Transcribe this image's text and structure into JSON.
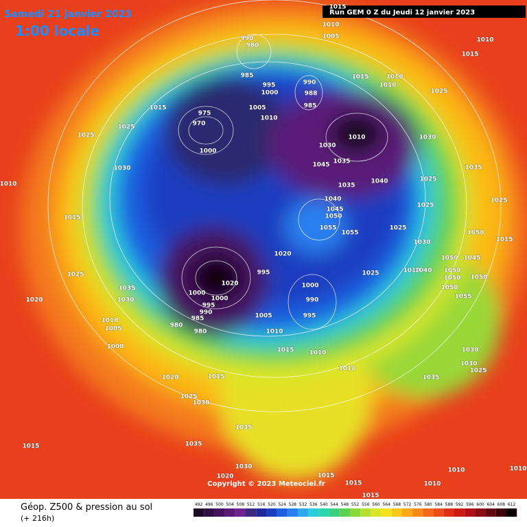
{
  "header": {
    "date": "Samedi 21 janvier 2023",
    "time": "1:00 locale",
    "run": "Run GEM 0 Z du Jeudi 12 janvier 2023"
  },
  "footer": {
    "title": "Géop. Z500 & pression au sol",
    "lead": "(+ 216h)",
    "copyright": "Copyright © 2023 Meteociel.fr"
  },
  "colorbar": {
    "levels": [
      492,
      496,
      500,
      504,
      508,
      512,
      516,
      520,
      524,
      528,
      532,
      536,
      540,
      544,
      548,
      552,
      556,
      560,
      564,
      568,
      572,
      576,
      580,
      584,
      588,
      592,
      596,
      600,
      604,
      608,
      612
    ],
    "colors": [
      "#1a0a24",
      "#2e0e45",
      "#44125e",
      "#5a1a78",
      "#6e2490",
      "#3a2a80",
      "#1e2a9a",
      "#1a3ec0",
      "#1e5ee0",
      "#2a80f0",
      "#30a8f0",
      "#2ccce0",
      "#2ad6b0",
      "#3ad080",
      "#5cd050",
      "#8ad83a",
      "#b6e030",
      "#dce628",
      "#f6e020",
      "#fcc818",
      "#fca818",
      "#f88818",
      "#f46818",
      "#ec4c18",
      "#e03018",
      "#cc1c18",
      "#b01018",
      "#8a0c14",
      "#640810",
      "#3c040a",
      "#0a0000"
    ]
  },
  "isobar_labels": [
    990,
    980,
    985,
    995,
    1000,
    1005,
    1010,
    1015,
    975,
    970,
    1000,
    1025,
    1025,
    1030,
    1015,
    1025,
    1020,
    1035,
    1030,
    1010,
    1005,
    1000,
    1020,
    1015,
    1025,
    1030,
    1035,
    1015,
    1035,
    1030,
    1020,
    1015,
    1015,
    1015,
    1010,
    1010,
    1010,
    990,
    988,
    985,
    1015,
    1010,
    1010,
    1025,
    1010,
    1030,
    1045,
    1035,
    1035,
    1040,
    1030,
    1035,
    1025,
    1025,
    1025,
    1040,
    1045,
    1050,
    1055,
    1055,
    1025,
    1030,
    1050,
    1015,
    1050,
    1045,
    1020,
    995,
    1025,
    1010,
    1040,
    1050,
    1050,
    1050,
    1050,
    1055,
    1000,
    990,
    995,
    1005,
    1010,
    1015,
    1010,
    1010,
    1000,
    1000,
    995,
    990,
    985,
    980,
    980,
    1020,
    1030,
    1030,
    1025,
    1035,
    1010,
    1005,
    1015,
    1010,
    1015,
    1010
  ]
}
